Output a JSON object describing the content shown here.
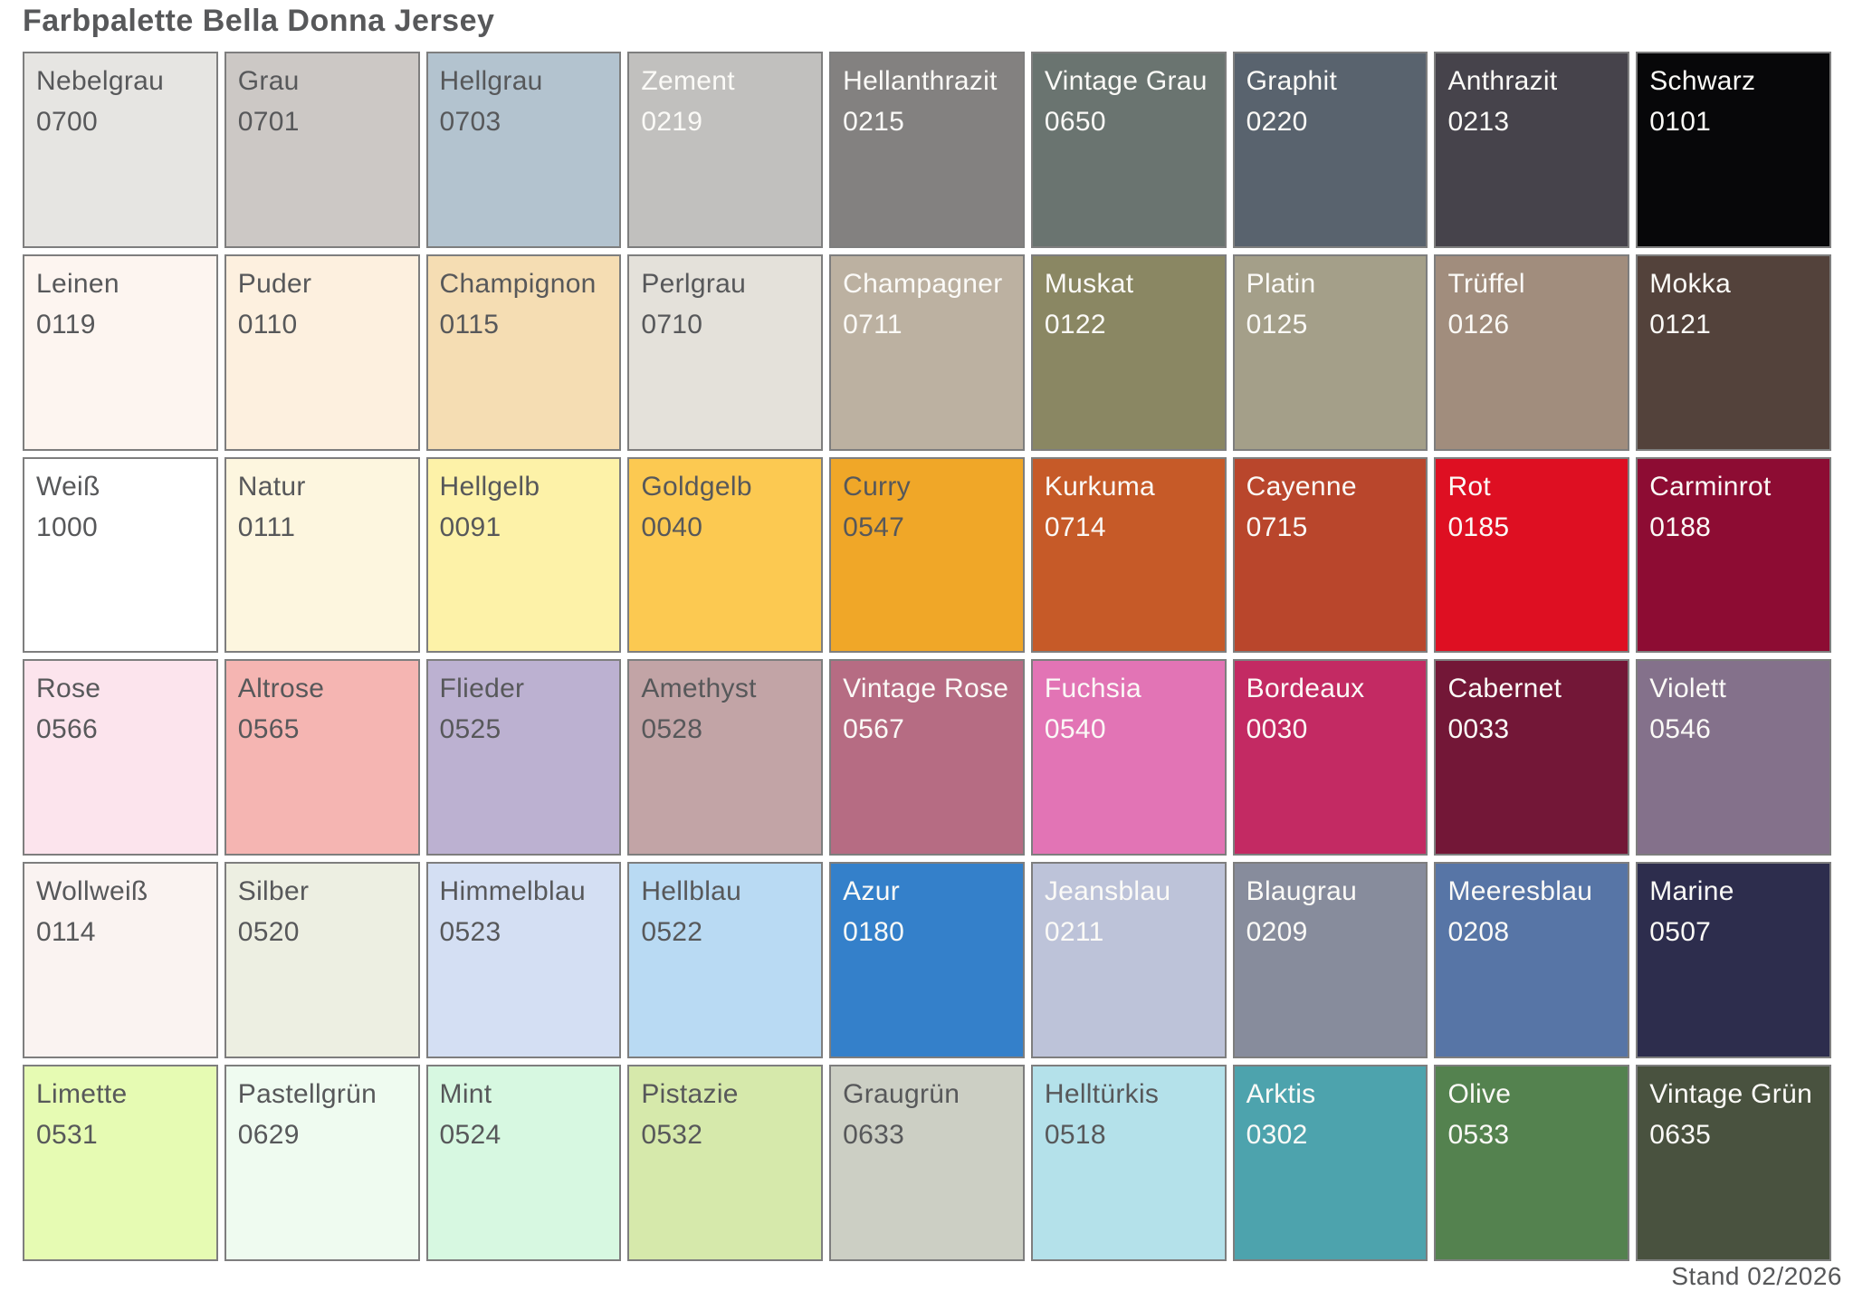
{
  "title": "Farbpalette Bella Donna Jersey",
  "footer": "Stand 02/2026",
  "colors": {
    "background": "#ffffff",
    "swatch_border": "#7e7e7e",
    "text_dark": "#57585a",
    "text_light": "#fbfaf7"
  },
  "chart_data": {
    "type": "table",
    "title": "Farbpalette Bella Donna Jersey",
    "note": "Stand 02/2026",
    "layout": {
      "rows": 6,
      "columns": 9,
      "order": "row-major"
    },
    "swatches": [
      {
        "name": "Nebelgrau",
        "code": "0700",
        "hex": "#e6e5e2",
        "text": "dark"
      },
      {
        "name": "Grau",
        "code": "0701",
        "hex": "#ccc8c5",
        "text": "dark"
      },
      {
        "name": "Hellgrau",
        "code": "0703",
        "hex": "#b3c3cf",
        "text": "dark"
      },
      {
        "name": "Zement",
        "code": "0219",
        "hex": "#c1c0be",
        "text": "light"
      },
      {
        "name": "Hellanthrazit",
        "code": "0215",
        "hex": "#838180",
        "text": "light"
      },
      {
        "name": "Vintage Grau",
        "code": "0650",
        "hex": "#6a7470",
        "text": "light"
      },
      {
        "name": "Graphit",
        "code": "0220",
        "hex": "#59636e",
        "text": "light"
      },
      {
        "name": "Anthrazit",
        "code": "0213",
        "hex": "#46434b",
        "text": "light"
      },
      {
        "name": "Schwarz",
        "code": "0101",
        "hex": "#070709",
        "text": "light"
      },
      {
        "name": "Leinen",
        "code": "0119",
        "hex": "#fdf5f0",
        "text": "dark"
      },
      {
        "name": "Puder",
        "code": "0110",
        "hex": "#fdf0df",
        "text": "dark"
      },
      {
        "name": "Champignon",
        "code": "0115",
        "hex": "#f5ddb3",
        "text": "dark"
      },
      {
        "name": "Perlgrau",
        "code": "0710",
        "hex": "#e4e1da",
        "text": "dark"
      },
      {
        "name": "Champagner",
        "code": "0711",
        "hex": "#bcb1a1",
        "text": "light"
      },
      {
        "name": "Muskat",
        "code": "0122",
        "hex": "#8a8763",
        "text": "light"
      },
      {
        "name": "Platin",
        "code": "0125",
        "hex": "#a49f89",
        "text": "light"
      },
      {
        "name": "Trüffel",
        "code": "0126",
        "hex": "#a18d7d",
        "text": "light"
      },
      {
        "name": "Mokka",
        "code": "0121",
        "hex": "#53423b",
        "text": "light"
      },
      {
        "name": "Weiß",
        "code": "1000",
        "hex": "#ffffff",
        "text": "dark"
      },
      {
        "name": "Natur",
        "code": "0111",
        "hex": "#fdf6df",
        "text": "dark"
      },
      {
        "name": "Hellgelb",
        "code": "0091",
        "hex": "#fdf2a8",
        "text": "dark"
      },
      {
        "name": "Goldgelb",
        "code": "0040",
        "hex": "#fcc951",
        "text": "dark"
      },
      {
        "name": "Curry",
        "code": "0547",
        "hex": "#f0a728",
        "text": "dark"
      },
      {
        "name": "Kurkuma",
        "code": "0714",
        "hex": "#c65a28",
        "text": "light"
      },
      {
        "name": "Cayenne",
        "code": "0715",
        "hex": "#b9462c",
        "text": "light"
      },
      {
        "name": "Rot",
        "code": "0185",
        "hex": "#de0f22",
        "text": "light"
      },
      {
        "name": "Carminrot",
        "code": "0188",
        "hex": "#8d0c33",
        "text": "light"
      },
      {
        "name": "Rose",
        "code": "0566",
        "hex": "#fce4ed",
        "text": "dark"
      },
      {
        "name": "Altrose",
        "code": "0565",
        "hex": "#f5b5b2",
        "text": "dark"
      },
      {
        "name": "Flieder",
        "code": "0525",
        "hex": "#bcb1d1",
        "text": "dark"
      },
      {
        "name": "Amethyst",
        "code": "0528",
        "hex": "#c2a4a6",
        "text": "dark"
      },
      {
        "name": "Vintage Rose",
        "code": "0567",
        "hex": "#b66c83",
        "text": "light"
      },
      {
        "name": "Fuchsia",
        "code": "0540",
        "hex": "#e274b5",
        "text": "light"
      },
      {
        "name": "Bordeaux",
        "code": "0030",
        "hex": "#c32a63",
        "text": "light"
      },
      {
        "name": "Cabernet",
        "code": "0033",
        "hex": "#731737",
        "text": "light"
      },
      {
        "name": "Violett",
        "code": "0546",
        "hex": "#84718b",
        "text": "light"
      },
      {
        "name": "Wollweiß",
        "code": "0114",
        "hex": "#faf3f1",
        "text": "dark"
      },
      {
        "name": "Silber",
        "code": "0520",
        "hex": "#edefe2",
        "text": "dark"
      },
      {
        "name": "Himmelblau",
        "code": "0523",
        "hex": "#d4dff3",
        "text": "dark"
      },
      {
        "name": "Hellblau",
        "code": "0522",
        "hex": "#b9daf3",
        "text": "dark"
      },
      {
        "name": "Azur",
        "code": "0180",
        "hex": "#3480ca",
        "text": "light"
      },
      {
        "name": "Jeansblau",
        "code": "0211",
        "hex": "#bdc3d9",
        "text": "light"
      },
      {
        "name": "Blaugrau",
        "code": "0209",
        "hex": "#878c9c",
        "text": "light"
      },
      {
        "name": "Meeresblau",
        "code": "0208",
        "hex": "#5775a6",
        "text": "light"
      },
      {
        "name": "Marine",
        "code": "0507",
        "hex": "#2d2d4d",
        "text": "light"
      },
      {
        "name": "Limette",
        "code": "0531",
        "hex": "#e6fbb3",
        "text": "dark"
      },
      {
        "name": "Pastellgrün",
        "code": "0629",
        "hex": "#effbf0",
        "text": "dark"
      },
      {
        "name": "Mint",
        "code": "0524",
        "hex": "#d7f8e1",
        "text": "dark"
      },
      {
        "name": "Pistazie",
        "code": "0532",
        "hex": "#d6e9ab",
        "text": "dark"
      },
      {
        "name": "Graugrün",
        "code": "0633",
        "hex": "#cccfc4",
        "text": "dark"
      },
      {
        "name": "Helltürkis",
        "code": "0518",
        "hex": "#b4e1ea",
        "text": "dark"
      },
      {
        "name": "Arktis",
        "code": "0302",
        "hex": "#4da3ad",
        "text": "light"
      },
      {
        "name": "Olive",
        "code": "0533",
        "hex": "#54824f",
        "text": "light"
      },
      {
        "name": "Vintage Grün",
        "code": "0635",
        "hex": "#49523f",
        "text": "light"
      }
    ]
  }
}
